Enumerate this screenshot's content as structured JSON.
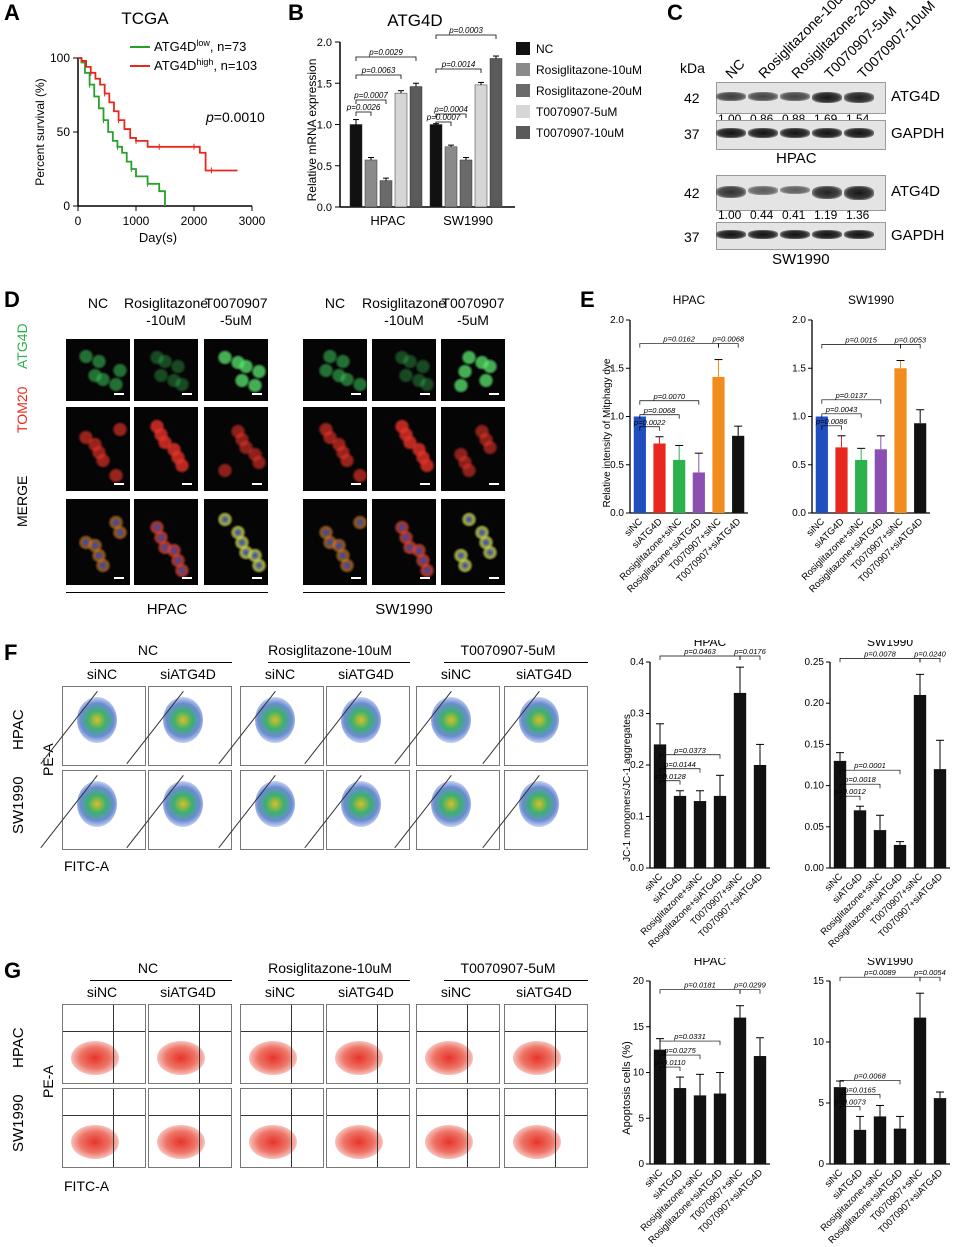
{
  "panels": {
    "A": "A",
    "B": "B",
    "C": "C",
    "D": "D",
    "E": "E",
    "F": "F",
    "G": "G"
  },
  "panelA": {
    "title": "TCGA",
    "ylabel": "Percent survival (%)",
    "xlabel": "Day(s)",
    "legend_low": "ATG4D",
    "legend_low_sup": "low",
    "legend_low_n": ", n=73",
    "legend_high": "ATG4D",
    "legend_high_sup": "high",
    "legend_high_n": ", n=103",
    "pvalue_p": "p",
    "pvalue": "=0.0010",
    "colors": {
      "low": "#2aa02a",
      "high": "#e8281e"
    }
  },
  "panelB": {
    "title": "ATG4D",
    "ylabel": "Relative mRNA expression",
    "legend": [
      "NC",
      "Rosiglitazone-10uM",
      "Rosiglitazone-20uM",
      "T0070907-5uM",
      "T0070907-10uM"
    ],
    "colors": [
      "#111111",
      "#8a8a8a",
      "#6a6a6a",
      "#d6d6d6",
      "#5a5a5a"
    ],
    "pvals_hpac": [
      "p=0.0026",
      "p=0.0007",
      "p=0.0063",
      "p=0.0029"
    ],
    "pvals_sw": [
      "p=0.0007",
      "p=0.0004",
      "p=0.0014",
      "p=0.0003"
    ]
  },
  "panelC": {
    "kda": "kDa",
    "lanes": [
      "NC",
      "Rosiglitazone-10uM",
      "Rosiglitazone-20uM",
      "T0070907-5uM",
      "T0070907-10uM"
    ],
    "hpac": {
      "name": "HPAC",
      "mw1": "42",
      "mw2": "37",
      "protein1": "ATG4D",
      "protein2": "GAPDH",
      "values": [
        "1.00",
        "0.86",
        "0.88",
        "1.69",
        "1.54"
      ]
    },
    "sw": {
      "name": "SW1990",
      "mw1": "42",
      "mw2": "37",
      "protein1": "ATG4D",
      "protein2": "GAPDH",
      "values": [
        "1.00",
        "0.44",
        "0.41",
        "1.19",
        "1.36"
      ]
    }
  },
  "panelD": {
    "columns": [
      "NC",
      "Rosiglitazone",
      "T0070907"
    ],
    "columns_sub": [
      "",
      "-10uM",
      "-5uM"
    ],
    "rows": [
      "ATG4D",
      "TOM20",
      "MERGE"
    ],
    "row_colors": [
      "#2bb24c",
      "#e8281e",
      "#000000"
    ],
    "groups": [
      "HPAC",
      "SW1990"
    ]
  },
  "panelE": {
    "ylabel": "Relative intensity of Mitphagy dye",
    "categories": [
      "siNC",
      "siATG4D",
      "Rosiglitazone+siNC",
      "Rosiglitazone+siATG4D",
      "T0070907+siNC",
      "T0070907+siATG4D"
    ],
    "colors": [
      "#1f4fbf",
      "#e8281e",
      "#2bb24c",
      "#8a4fb0",
      "#f28c1e",
      "#111111"
    ],
    "charts": [
      {
        "title": "HPAC",
        "pvals": [
          "p=0.0022",
          "p=0.0068",
          "p=0.0070",
          "p=0.0162",
          "p=0.0068"
        ]
      },
      {
        "title": "SW1990",
        "pvals": [
          "p=0.0086",
          "p=0.0043",
          "p=0.0137",
          "p=0.0015",
          "p=0.0053"
        ]
      }
    ]
  },
  "panelF": {
    "groups": [
      "NC",
      "Rosiglitazone-10uM",
      "T0070907-5uM"
    ],
    "sub": [
      "siNC",
      "siATG4D"
    ],
    "rows": [
      "HPAC",
      "SW1990"
    ],
    "xaxis": "FITC-A",
    "yaxis": "PE-A",
    "ylabel": "JC-1 monomers/JC-1 aggregates",
    "charts": [
      {
        "title": "HPAC",
        "pvals": [
          "p=0.0128",
          "p=0.0144",
          "p=0.0373",
          "p=0.0463",
          "p=0.0176"
        ]
      },
      {
        "title": "SW1990",
        "pvals": [
          "p=0.0012",
          "p=0.0018",
          "p=0.0001",
          "p=0.0078",
          "p=0.0240"
        ]
      }
    ]
  },
  "panelG": {
    "groups": [
      "NC",
      "Rosiglitazone-10uM",
      "T0070907-5uM"
    ],
    "sub": [
      "siNC",
      "siATG4D"
    ],
    "rows": [
      "HPAC",
      "SW1990"
    ],
    "xaxis": "FITC-A",
    "yaxis": "PE-A",
    "ylabel": "Apoptosis cells (%)",
    "charts": [
      {
        "title": "HPAC",
        "pvals": [
          "p=0.0110",
          "p=0.0275",
          "p=0.0331",
          "p=0.0181",
          "p=0.0299"
        ]
      },
      {
        "title": "SW1990",
        "pvals": [
          "p=0.0073",
          "p=0.0165",
          "p=0.0068",
          "p=0.0089",
          "p=0.0054"
        ]
      }
    ]
  },
  "chart_data": [
    {
      "type": "line",
      "title": "TCGA",
      "xlabel": "Day(s)",
      "ylabel": "Percent survival (%)",
      "xlim": [
        0,
        3000
      ],
      "ylim": [
        0,
        100
      ],
      "xticks": [
        0,
        1000,
        2000,
        3000
      ],
      "yticks": [
        0,
        50,
        100
      ],
      "series": [
        {
          "name": "ATG4Dlow, n=73",
          "x": [
            0,
            60,
            120,
            200,
            280,
            360,
            440,
            520,
            600,
            680,
            760,
            840,
            920,
            1000,
            1100,
            1200,
            1300,
            1400,
            1500,
            1500
          ],
          "y": [
            100,
            97,
            90,
            82,
            74,
            66,
            58,
            50,
            44,
            40,
            36,
            30,
            25,
            20,
            20,
            15,
            15,
            10,
            5,
            0
          ]
        },
        {
          "name": "ATG4Dhigh, n=103",
          "x": [
            0,
            60,
            140,
            220,
            300,
            380,
            460,
            540,
            620,
            700,
            800,
            900,
            1000,
            1100,
            1200,
            1400,
            1600,
            1800,
            2000,
            2100,
            2200,
            2300,
            2500,
            2750
          ],
          "y": [
            100,
            98,
            94,
            90,
            86,
            82,
            76,
            70,
            64,
            58,
            52,
            46,
            44,
            44,
            40,
            40,
            40,
            40,
            40,
            36,
            24,
            24,
            24,
            24
          ]
        }
      ]
    },
    {
      "type": "bar",
      "title": "ATG4D",
      "ylabel": "Relative mRNA expression",
      "categories": [
        "HPAC",
        "SW1990"
      ],
      "ylim": [
        0,
        2.0
      ],
      "yticks": [
        0,
        0.5,
        1.0,
        1.5,
        2.0
      ],
      "series": [
        {
          "name": "NC",
          "values": [
            1.0,
            1.0
          ]
        },
        {
          "name": "Rosiglitazone-10uM",
          "values": [
            0.57,
            0.73
          ]
        },
        {
          "name": "Rosiglitazone-20uM",
          "values": [
            0.32,
            0.57
          ]
        },
        {
          "name": "T0070907-5uM",
          "values": [
            1.38,
            1.48
          ]
        },
        {
          "name": "T0070907-10uM",
          "values": [
            1.46,
            1.8
          ]
        }
      ],
      "errors": [
        [
          0.06,
          0.01
        ],
        [
          0.03,
          0.02
        ],
        [
          0.03,
          0.03
        ],
        [
          0.03,
          0.03
        ],
        [
          0.04,
          0.03
        ]
      ]
    },
    {
      "type": "bar",
      "title": "HPAC",
      "ylabel": "Relative intensity of Mitphagy dye",
      "categories": [
        "siNC",
        "siATG4D",
        "Rosiglitazone+siNC",
        "Rosiglitazone+siATG4D",
        "T0070907+siNC",
        "T0070907+siATG4D"
      ],
      "values": [
        1.0,
        0.72,
        0.55,
        0.42,
        1.41,
        0.8
      ],
      "errors": [
        0.0,
        0.07,
        0.15,
        0.2,
        0.18,
        0.1
      ],
      "ylim": [
        0,
        2.0
      ],
      "yticks": [
        0,
        0.5,
        1.0,
        1.5,
        2.0
      ]
    },
    {
      "type": "bar",
      "title": "SW1990",
      "ylabel": "Relative intensity of Mitphagy dye",
      "categories": [
        "siNC",
        "siATG4D",
        "Rosiglitazone+siNC",
        "Rosiglitazone+siATG4D",
        "T0070907+siNC",
        "T0070907+siATG4D"
      ],
      "values": [
        1.0,
        0.68,
        0.55,
        0.66,
        1.5,
        0.93
      ],
      "errors": [
        0.0,
        0.12,
        0.12,
        0.14,
        0.08,
        0.14
      ],
      "ylim": [
        0,
        2.0
      ],
      "yticks": [
        0,
        0.5,
        1.0,
        1.5,
        2.0
      ]
    },
    {
      "type": "bar",
      "title": "HPAC",
      "ylabel": "JC-1 monomers/JC-1 aggregates",
      "categories": [
        "siNC",
        "siATG4D",
        "Rosiglitazone+siNC",
        "Rosiglitazone+siATG4D",
        "T0070907+siNC",
        "T0070907+siATG4D"
      ],
      "values": [
        0.24,
        0.14,
        0.13,
        0.14,
        0.34,
        0.2
      ],
      "errors": [
        0.04,
        0.01,
        0.02,
        0.04,
        0.05,
        0.04
      ],
      "ylim": [
        0,
        0.4
      ],
      "yticks": [
        0,
        0.1,
        0.2,
        0.3,
        0.4
      ]
    },
    {
      "type": "bar",
      "title": "SW1990",
      "ylabel": "JC-1 monomers/JC-1 aggregates",
      "categories": [
        "siNC",
        "siATG4D",
        "Rosiglitazone+siNC",
        "Rosiglitazone+siATG4D",
        "T0070907+siNC",
        "T0070907+siATG4D"
      ],
      "values": [
        0.13,
        0.07,
        0.046,
        0.028,
        0.21,
        0.12
      ],
      "errors": [
        0.01,
        0.005,
        0.018,
        0.004,
        0.025,
        0.035
      ],
      "ylim": [
        0,
        0.25
      ],
      "yticks": [
        0,
        0.05,
        0.1,
        0.15,
        0.2,
        0.25
      ]
    },
    {
      "type": "bar",
      "title": "HPAC",
      "ylabel": "Apoptosis cells (%)",
      "categories": [
        "siNC",
        "siATG4D",
        "Rosiglitazone+siNC",
        "Rosiglitazone+siATG4D",
        "T0070907+siNC",
        "T0070907+siATG4D"
      ],
      "values": [
        12.5,
        8.3,
        7.5,
        7.7,
        16.0,
        11.8
      ],
      "errors": [
        1.2,
        1.2,
        2.3,
        2.3,
        1.3,
        2.0
      ],
      "ylim": [
        0,
        20
      ],
      "yticks": [
        0,
        5,
        10,
        15,
        20
      ]
    },
    {
      "type": "bar",
      "title": "SW1990",
      "ylabel": "Apoptosis cells (%)",
      "categories": [
        "siNC",
        "siATG4D",
        "Rosiglitazone+siNC",
        "Rosiglitazone+siATG4D",
        "T0070907+siNC",
        "T0070907+siATG4D"
      ],
      "values": [
        6.3,
        2.8,
        3.9,
        2.9,
        12.0,
        5.4
      ],
      "errors": [
        0.5,
        1.1,
        0.9,
        1.0,
        2.0,
        0.5
      ],
      "ylim": [
        0,
        15
      ],
      "yticks": [
        0,
        5,
        10,
        15
      ]
    }
  ]
}
